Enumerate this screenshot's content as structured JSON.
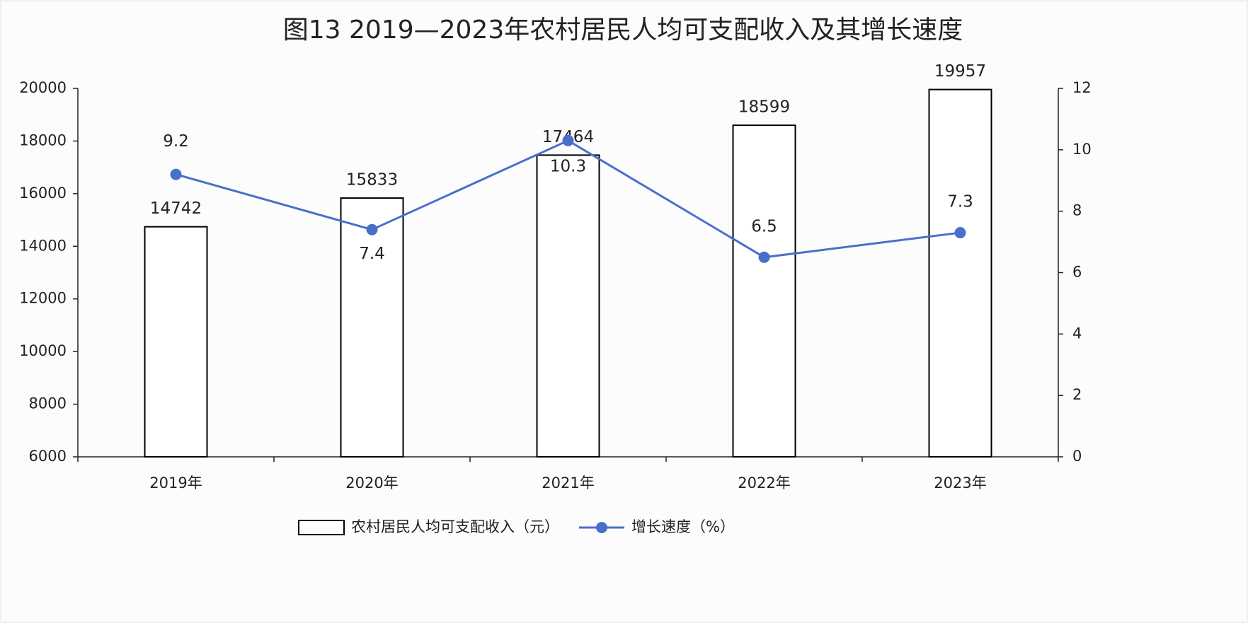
{
  "chart_data": {
    "type": "bar",
    "title": "图13  2019—2023年农村居民人均可支配收入及其增长速度",
    "categories": [
      "2019年",
      "2020年",
      "2021年",
      "2022年",
      "2023年"
    ],
    "series": [
      {
        "name": "农村居民人均可支配收入（元）",
        "type": "bar",
        "color": "#ffffff",
        "edgecolor": "#000000",
        "values": [
          14742,
          15833,
          17464,
          18599,
          19957
        ]
      },
      {
        "name": "增长速度（%）",
        "type": "line",
        "axis": "y2",
        "color": "#4a6fcb",
        "values": [
          9.2,
          7.4,
          10.3,
          6.5,
          7.3
        ]
      }
    ],
    "ylim": [
      6000,
      20000
    ],
    "yticks": [
      6000,
      8000,
      10000,
      12000,
      14000,
      16000,
      18000,
      20000
    ],
    "y2lim": [
      0,
      12
    ],
    "y2ticks": [
      0,
      2,
      4,
      6,
      8,
      10,
      12
    ],
    "grid": false,
    "legend": "bottom"
  }
}
